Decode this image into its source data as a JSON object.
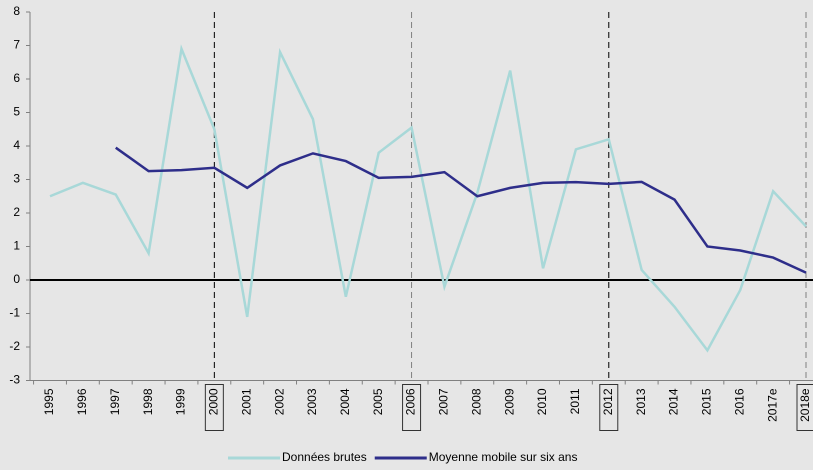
{
  "chart_data": {
    "type": "line",
    "categories": [
      "1995",
      "1996",
      "1997",
      "1998",
      "1999",
      "2000",
      "2001",
      "2002",
      "2003",
      "2004",
      "2005",
      "2006",
      "2007",
      "2008",
      "2009",
      "2010",
      "2011",
      "2012",
      "2013",
      "2014",
      "2015",
      "2016",
      "2017e",
      "2018e"
    ],
    "series": [
      {
        "name": "Données brutes",
        "color": "#a8d8d8",
        "values": [
          2.5,
          2.9,
          2.55,
          0.8,
          6.9,
          4.5,
          -1.1,
          6.8,
          4.8,
          -0.5,
          3.8,
          4.55,
          -0.2,
          2.6,
          6.25,
          0.35,
          3.9,
          4.2,
          0.3,
          -0.8,
          -2.1,
          -0.3,
          2.65,
          1.6
        ]
      },
      {
        "name": "Moyenne mobile sur six ans",
        "color": "#2e2e8a",
        "values": [
          null,
          null,
          3.95,
          3.25,
          3.28,
          3.35,
          2.75,
          3.42,
          3.78,
          3.55,
          3.05,
          3.08,
          3.22,
          2.5,
          2.75,
          2.9,
          2.92,
          2.87,
          2.93,
          2.4,
          1.0,
          0.88,
          0.67,
          0.22
        ]
      }
    ],
    "ylim": [
      -3,
      8
    ],
    "yticks": [
      -3,
      -2,
      -1,
      0,
      1,
      2,
      3,
      4,
      5,
      6,
      7,
      8
    ],
    "marked_categories": [
      {
        "category": "2000",
        "color": "#000000"
      },
      {
        "category": "2006",
        "color": "#808080"
      },
      {
        "category": "2012",
        "color": "#000000"
      },
      {
        "category": "2018e",
        "color": "#808080"
      }
    ],
    "legend": "bottom"
  }
}
